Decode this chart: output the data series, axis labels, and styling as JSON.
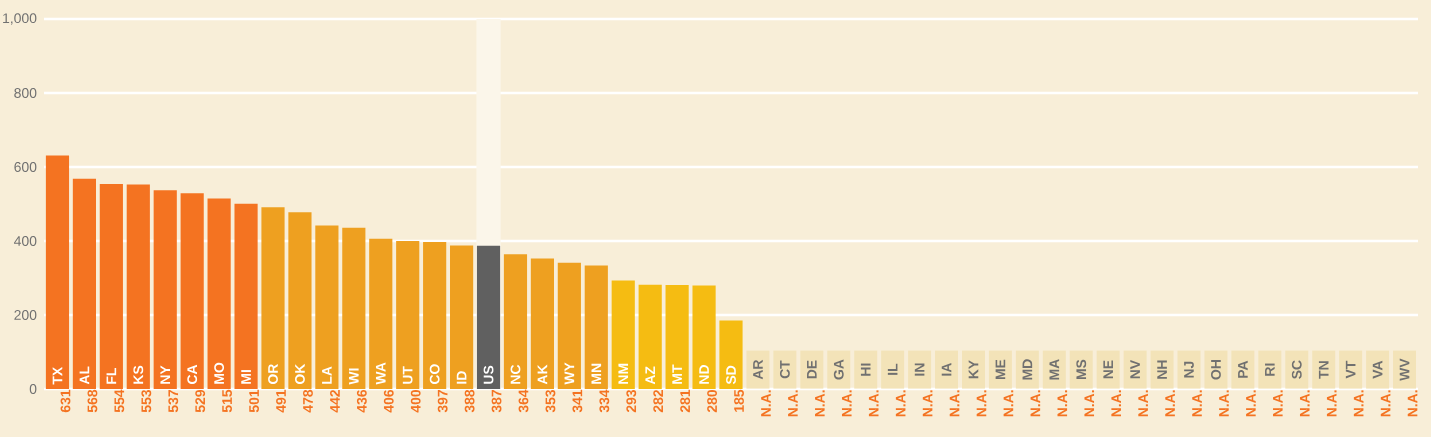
{
  "chart_data": {
    "type": "bar",
    "categories": [
      "TX",
      "AL",
      "FL",
      "KS",
      "NY",
      "CA",
      "MO",
      "MI",
      "OR",
      "OK",
      "LA",
      "WI",
      "WA",
      "UT",
      "CO",
      "ID",
      "US",
      "NC",
      "AK",
      "WY",
      "MN",
      "NM",
      "AZ",
      "MT",
      "ND",
      "SD",
      "AR",
      "CT",
      "DE",
      "GA",
      "HI",
      "IL",
      "IN",
      "IA",
      "KY",
      "ME",
      "MD",
      "MA",
      "MS",
      "NE",
      "NV",
      "NH",
      "NJ",
      "OH",
      "PA",
      "RI",
      "SC",
      "TN",
      "VT",
      "VA",
      "WV"
    ],
    "values": [
      631,
      568,
      554,
      553,
      537,
      529,
      515,
      501,
      491,
      478,
      442,
      436,
      406,
      400,
      397,
      388,
      387,
      364,
      353,
      341,
      334,
      293,
      282,
      281,
      280,
      185,
      null,
      null,
      null,
      null,
      null,
      null,
      null,
      null,
      null,
      null,
      null,
      null,
      null,
      null,
      null,
      null,
      null,
      null,
      null,
      null,
      null,
      null,
      null,
      null,
      null
    ],
    "value_labels": [
      "631",
      "568",
      "554",
      "553",
      "537",
      "529",
      "515",
      "501",
      "491",
      "478",
      "442",
      "436",
      "406",
      "400",
      "397",
      "388",
      "387",
      "364",
      "353",
      "341",
      "334",
      "293",
      "282",
      "281",
      "280",
      "185",
      "N.A.",
      "N.A.",
      "N.A.",
      "N.A.",
      "N.A.",
      "N.A.",
      "N.A.",
      "N.A.",
      "N.A.",
      "N.A.",
      "N.A.",
      "N.A.",
      "N.A.",
      "N.A.",
      "N.A.",
      "N.A.",
      "N.A.",
      "N.A.",
      "N.A.",
      "N.A.",
      "N.A.",
      "N.A.",
      "N.A.",
      "N.A.",
      "N.A."
    ],
    "colors": [
      "#f47321",
      "#f47321",
      "#f47321",
      "#f47321",
      "#f47321",
      "#f47321",
      "#f47321",
      "#f47321",
      "#eea020",
      "#eea020",
      "#eea020",
      "#eea020",
      "#eea020",
      "#eea020",
      "#eea020",
      "#eea020",
      "#606060",
      "#eea020",
      "#eea020",
      "#eea020",
      "#eea020",
      "#f5bc12",
      "#f5bc12",
      "#f5bc12",
      "#f5bc12",
      "#f5bc12",
      "#f3e3b8",
      "#f3e3b8",
      "#f3e3b8",
      "#f3e3b8",
      "#f3e3b8",
      "#f3e3b8",
      "#f3e3b8",
      "#f3e3b8",
      "#f3e3b8",
      "#f3e3b8",
      "#f3e3b8",
      "#f3e3b8",
      "#f3e3b8",
      "#f3e3b8",
      "#f3e3b8",
      "#f3e3b8",
      "#f3e3b8",
      "#f3e3b8",
      "#f3e3b8",
      "#f3e3b8",
      "#f3e3b8",
      "#f3e3b8",
      "#f3e3b8",
      "#f3e3b8",
      "#f3e3b8"
    ],
    "ylim": [
      0,
      1000
    ],
    "yticks": [
      0,
      200,
      400,
      600,
      800,
      {
        "value": 1000,
        "label": "1,000"
      }
    ],
    "grid": "y",
    "bands": [
      {
        "axis": "x",
        "from": "US",
        "to": "US",
        "color": "#fbf6ea"
      }
    ]
  }
}
